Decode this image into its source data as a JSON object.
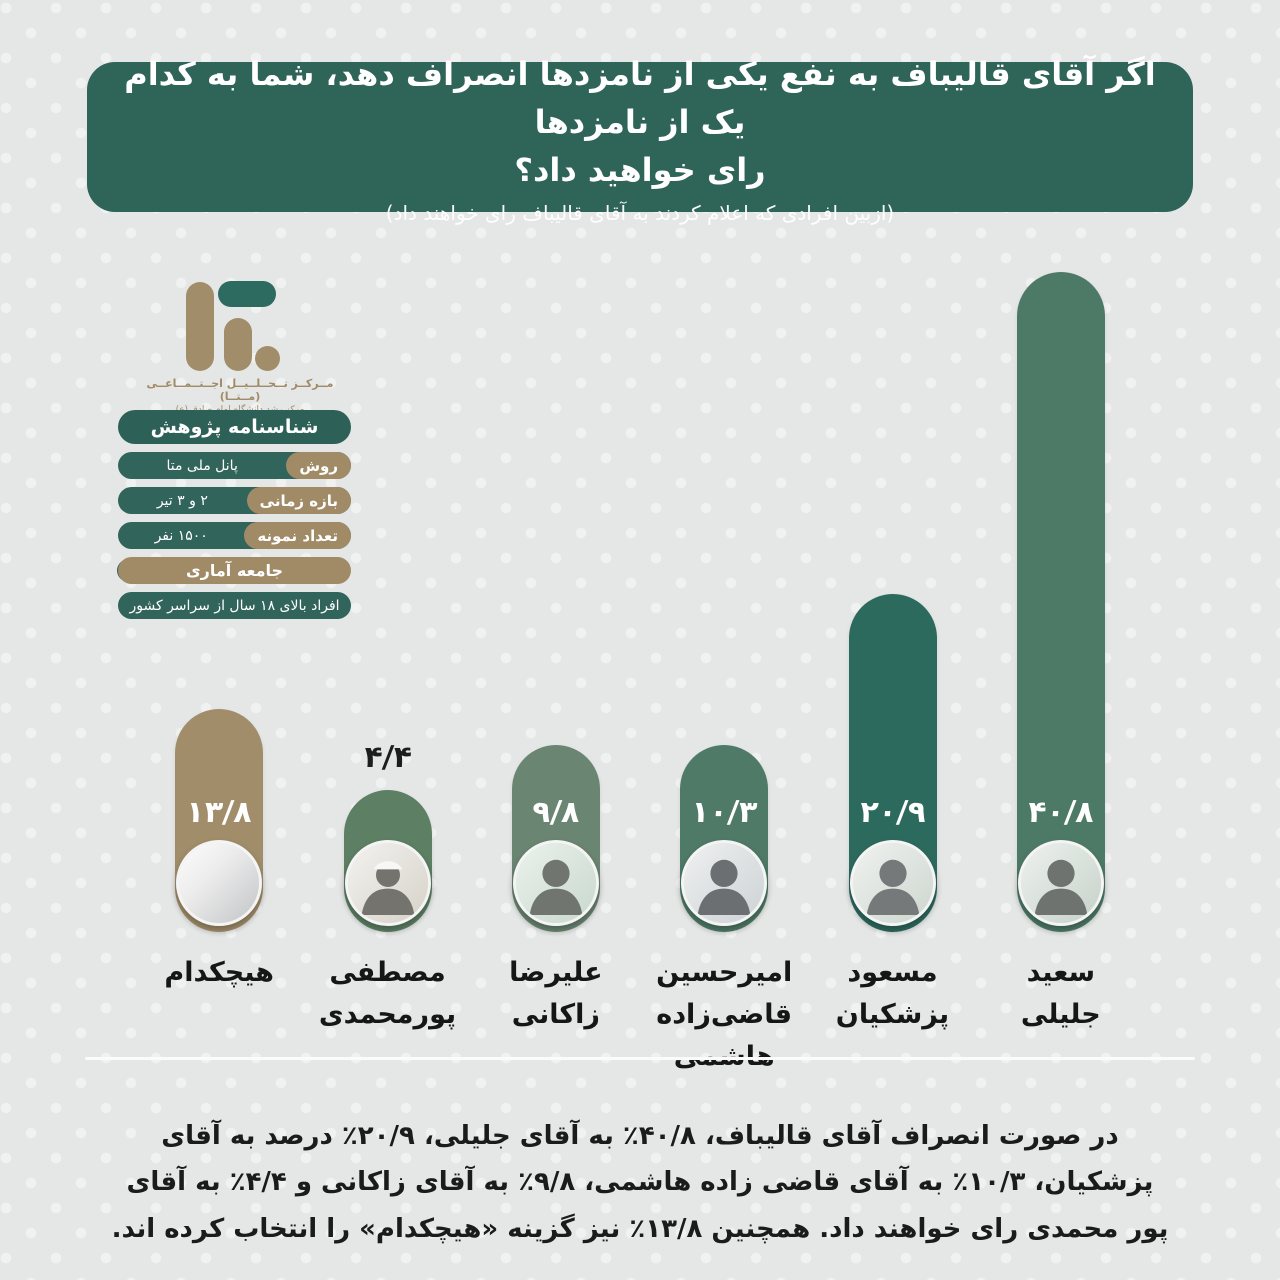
{
  "header": {
    "title": "اگر آقای قالیباف به نفع یکی از نامزدها انصراف دهد، شما به کدام یک از نامزدها\nرای خواهید داد؟",
    "subtitle": "(ازبین افرادی که اعلام کردند به آقای قالیباف رای خواهند داد)",
    "bg_color": "#2f6459"
  },
  "logo": {
    "caption_line1": "مــرکــز تــحــلــیــل اجــتــمــاعــی (مــتــا)",
    "caption_line2": "مرکز رشد دانشگاه امام صادق (ع)",
    "tan_color": "#a18d69",
    "green_color": "#2d6b60"
  },
  "research_card": {
    "title": "شناسنامه  پژوهش",
    "rows": [
      {
        "label": "روش",
        "value": "پانل ملی متا"
      },
      {
        "label": "بازه زمانی",
        "value": "۲ و ۳ تیر"
      },
      {
        "label": "تعداد نمونه",
        "value": "۱۵۰۰ نفر"
      }
    ],
    "population_label": "جامعه آماری",
    "population_value": "افراد بالای ۱۸ سال از سراسر کشور"
  },
  "chart_data": {
    "type": "bar",
    "orientation": "vertical",
    "direction": "rtl",
    "unit": "percent",
    "ylim": [
      0,
      45
    ],
    "grid": false,
    "legend": false,
    "categories": [
      "سعید جلیلی",
      "مسعود پزشکیان",
      "امیرحسین قاضی‌زاده هاشمی",
      "علیرضا زاکانی",
      "مصطفی پورمحمدی",
      "هیچکدام"
    ],
    "values": [
      40.8,
      20.9,
      10.3,
      9.8,
      4.4,
      13.8
    ],
    "bars": [
      {
        "name": "سعید\nجلیلی",
        "value": 40.8,
        "label": "۴۰/۸",
        "color": "#4d7a66",
        "value_position": "inside",
        "photo": "jalili"
      },
      {
        "name": "مسعود\nپزشکیان",
        "value": 20.9,
        "label": "۲۰/۹",
        "color": "#2d6a5e",
        "value_position": "inside",
        "photo": "pezeshkian"
      },
      {
        "name": "امیرحسین\nقاضی‌زاده\nهاشمی",
        "value": 10.3,
        "label": "۱۰/۳",
        "color": "#4e7a67",
        "value_position": "inside",
        "photo": "ghazizadeh-hashemi"
      },
      {
        "name": "علیرضا\nزاکانی",
        "value": 9.8,
        "label": "۹/۸",
        "color": "#6a8571",
        "value_position": "inside",
        "photo": "zakani"
      },
      {
        "name": "مصطفی\nپورمحمدی",
        "value": 4.4,
        "label": "۴/۴",
        "color": "#5d7f64",
        "value_position": "outside",
        "photo": "pourmohammadi"
      },
      {
        "name": "هیچکدام",
        "value": 13.8,
        "label": "۱۳/۸",
        "color": "#a18d69",
        "value_position": "inside",
        "photo": "none"
      }
    ]
  },
  "footer": {
    "text": "در صورت انصراف آقای قالیباف، ۴۰/۸٪  به آقای جلیلی، ۲۰/۹٪ درصد به آقای پزشکیان، ۱۰/۳٪ به آقای قاضی زاده هاشمی، ۹/۸٪ به آقای زاکانی و ۴/۴٪ به آقای پور محمدی رای خواهند داد. همچنین ۱۳/۸٪ نیز گزینه «هیچکدام» را انتخاب کرده اند."
  }
}
